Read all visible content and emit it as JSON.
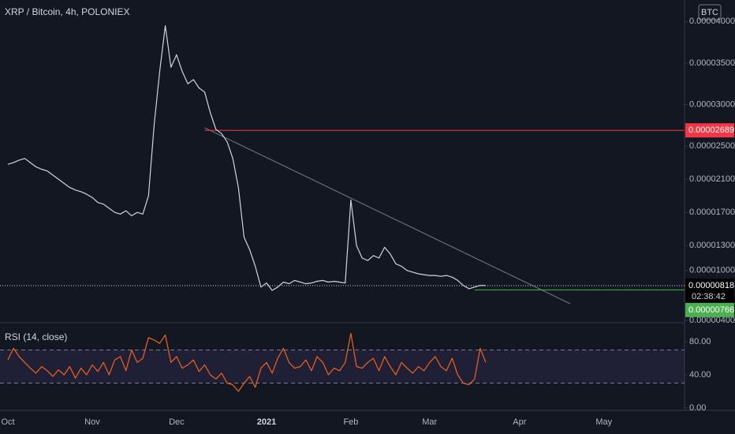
{
  "chart_data": {
    "type": "line",
    "title": "XRP / Bitcoin, 4h, POLONIEX",
    "currency": "BTC",
    "categories": [
      "Oct",
      null,
      null,
      null,
      null,
      null,
      null,
      null,
      null,
      null,
      null,
      null,
      null,
      null,
      null,
      "Nov",
      null,
      null,
      null,
      null,
      null,
      null,
      null,
      null,
      null,
      null,
      null,
      null,
      null,
      null,
      "Dec",
      null,
      null,
      null,
      null,
      null,
      null,
      null,
      null,
      null,
      null,
      null,
      null,
      null,
      null,
      null,
      "2021",
      null,
      null,
      null,
      null,
      null,
      null,
      null,
      null,
      null,
      null,
      null,
      null,
      null,
      null,
      "Feb",
      null,
      null,
      null,
      null,
      null,
      null,
      null,
      null,
      null,
      null,
      null,
      null,
      null,
      "Mar",
      null,
      null,
      null,
      null,
      null,
      null,
      null,
      null,
      null,
      null,
      null,
      null,
      null,
      null,
      null,
      "Apr",
      null,
      null,
      null,
      null,
      null,
      null,
      null,
      null,
      null,
      null,
      null,
      null,
      null,
      null,
      "May",
      null,
      null,
      null,
      null,
      null,
      null,
      null,
      null,
      null,
      null,
      null,
      null,
      null
    ],
    "series": [
      {
        "color": "#d1d4dc",
        "values": [
          2.28e-05,
          2.3e-05,
          2.33e-05,
          2.35e-05,
          2.3e-05,
          2.25e-05,
          2.22e-05,
          2.2e-05,
          2.15e-05,
          2.1e-05,
          2.05e-05,
          2e-05,
          1.97e-05,
          1.95e-05,
          1.92e-05,
          1.88e-05,
          1.82e-05,
          1.8e-05,
          1.75e-05,
          1.7e-05,
          1.68e-05,
          1.72e-05,
          1.66e-05,
          1.7e-05,
          1.68e-05,
          1.9e-05,
          2.75e-05,
          3.4e-05,
          3.95e-05,
          3.45e-05,
          3.6e-05,
          3.4e-05,
          3.25e-05,
          3.3e-05,
          3.2e-05,
          3.15e-05,
          2.9e-05,
          2.7e-05,
          2.65e-05,
          2.55e-05,
          2.35e-05,
          2e-05,
          1.4e-05,
          1.25e-05,
          1.05e-05,
          8e-06,
          8.5e-06,
          7.6e-06,
          8e-06,
          8.6e-06,
          8.4e-06,
          8.8e-06,
          8.6e-06,
          8.4e-06,
          8.5e-06,
          8.7e-06,
          8.8e-06,
          8.6e-06,
          8.7e-06,
          8.6e-06,
          8.5e-06,
          1.85e-05,
          1.3e-05,
          1.15e-05,
          1.12e-05,
          1.18e-05,
          1.15e-05,
          1.28e-05,
          1.2e-05,
          1.08e-05,
          1.05e-05,
          1e-05,
          9.8e-06,
          9.6e-06,
          9.5e-06,
          9.4e-06,
          9.4e-06,
          9.3e-06,
          9.4e-06,
          9.2e-06,
          8.8e-06,
          8.2e-06,
          7.8e-06,
          8e-06,
          8.2e-06,
          8.18e-06,
          null,
          null,
          null,
          null,
          null,
          null,
          null,
          null,
          null,
          null,
          null,
          null,
          null,
          null,
          null,
          null,
          null,
          null,
          null,
          null,
          null,
          null,
          null,
          null,
          null,
          null,
          null,
          null,
          null,
          null,
          null,
          null,
          null,
          null
        ]
      },
      {
        "name": "RSI (14, close)",
        "color": "#f0631d",
        "axis": "y2",
        "values": [
          58,
          72,
          62,
          55,
          48,
          42,
          50,
          45,
          38,
          46,
          40,
          50,
          36,
          48,
          40,
          52,
          44,
          55,
          40,
          58,
          62,
          45,
          70,
          55,
          60,
          85,
          82,
          78,
          88,
          55,
          62,
          48,
          52,
          58,
          44,
          52,
          40,
          35,
          42,
          30,
          28,
          20,
          30,
          38,
          25,
          48,
          55,
          42,
          60,
          72,
          55,
          48,
          50,
          58,
          45,
          62,
          55,
          40,
          48,
          45,
          55,
          90,
          50,
          48,
          55,
          60,
          45,
          62,
          50,
          40,
          55,
          48,
          42,
          50,
          45,
          55,
          62,
          50,
          45,
          60,
          40,
          30,
          28,
          35,
          72,
          55,
          null,
          null,
          null,
          null,
          null,
          null,
          null,
          null,
          null,
          null,
          null,
          null,
          null,
          null,
          null,
          null,
          null,
          null,
          null,
          null,
          null,
          null,
          null,
          null,
          null,
          null,
          null,
          null,
          null,
          null,
          null,
          null,
          null,
          null
        ]
      }
    ],
    "ylim": [
      3.8e-06,
      4.26e-05
    ],
    "yticks": [
      {
        "value": 4e-05,
        "label": "0.00004000"
      },
      {
        "value": 3.5e-05,
        "label": "0.00003500"
      },
      {
        "value": 3e-05,
        "label": "0.00003000"
      },
      {
        "value": 2.5e-05,
        "label": "0.00002500"
      },
      {
        "value": 2.1e-05,
        "label": "0.00002100"
      },
      {
        "value": 1.7e-05,
        "label": "0.00001700"
      },
      {
        "value": 1.3e-05,
        "label": "0.00001300"
      },
      {
        "value": 1e-05,
        "label": "0.00001000"
      },
      {
        "value": 4e-06,
        "label": "0.00000400"
      }
    ],
    "y2lim": [
      0,
      100
    ],
    "y2ticks": [
      {
        "value": 80,
        "label": "80.00"
      },
      {
        "value": 40,
        "label": "40.00"
      },
      {
        "value": 0,
        "label": "0.00"
      }
    ],
    "y2_band": [
      30,
      70
    ],
    "grid": false,
    "price_lines": [
      {
        "value": 2.689e-05,
        "label": "0.00002689",
        "color": "#f23645",
        "from": 35
      },
      {
        "value": 7.66e-06,
        "label": "0.00000766",
        "color": "#4caf50",
        "from": 83
      }
    ],
    "last_price": {
      "value": 8.18e-06,
      "label": "0.00000818"
    },
    "countdown": "02:38:42",
    "trendline": {
      "x": [
        35,
        100
      ],
      "values": [
        2.72e-05,
        6e-06
      ],
      "color": "#787b86"
    }
  }
}
